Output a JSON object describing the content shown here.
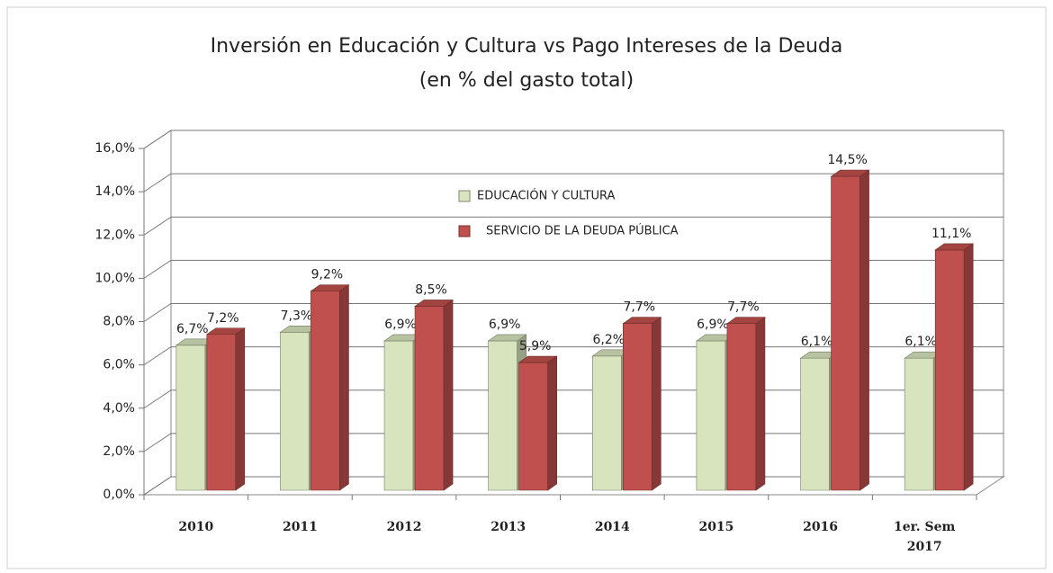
{
  "chart_data": {
    "type": "bar3d",
    "title": "Inversión en Educación y Cultura vs Pago Intereses de la Deuda",
    "subtitle": "(en % del  gasto total)",
    "categories": [
      "2010",
      "2011",
      "2012",
      "2013",
      "2014",
      "2015",
      "2016",
      "1er. Sem 2017"
    ],
    "series": [
      {
        "name": "EDUCACIÓN Y CULTURA",
        "color": "#d7e4bd",
        "values": [
          6.7,
          7.3,
          6.9,
          6.9,
          6.2,
          6.9,
          6.1,
          6.1
        ],
        "value_labels": [
          "6,7%",
          "7,3%",
          "6,9%",
          "6,9%",
          "6,2%",
          "6,9%",
          "6,1%",
          "6,1%"
        ]
      },
      {
        "name": "SERVICIO DE LA DEUDA PÚBLICA",
        "color": "#c0504d",
        "values": [
          7.2,
          9.2,
          8.5,
          5.9,
          7.7,
          7.7,
          14.5,
          11.1
        ],
        "value_labels": [
          "7,2%",
          "9,2%",
          "8,5%",
          "5,9%",
          "7,7%",
          "7,7%",
          "14,5%",
          "11,1%"
        ]
      }
    ],
    "ylim": [
      0,
      16
    ],
    "yticks": [
      {
        "value": 0,
        "label": "0,0%"
      },
      {
        "value": 2,
        "label": "2,0%"
      },
      {
        "value": 4,
        "label": "4,0%"
      },
      {
        "value": 6,
        "label": "6,0%"
      },
      {
        "value": 8,
        "label": "8,0%"
      },
      {
        "value": 10,
        "label": "10,0%"
      },
      {
        "value": 12,
        "label": "12,0%"
      },
      {
        "value": 14,
        "label": "14,0%"
      },
      {
        "value": 16,
        "label": "16,0%"
      }
    ],
    "grid": true,
    "legend": "inside-top"
  }
}
